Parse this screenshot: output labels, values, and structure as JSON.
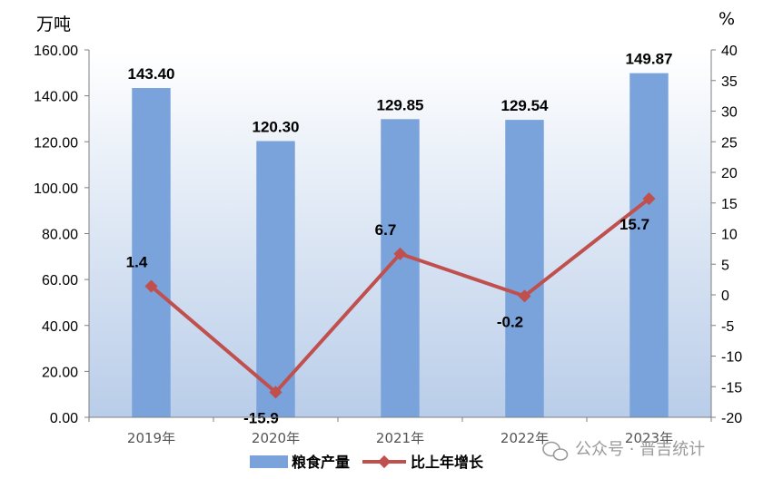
{
  "chart_data": {
    "type": "bar",
    "categories": [
      "2019年",
      "2020年",
      "2021年",
      "2022年",
      "2023年"
    ],
    "series": [
      {
        "name": "粮食产量",
        "type": "bar",
        "axis": "left",
        "color": "#7aa3dc",
        "values": [
          143.4,
          120.3,
          129.85,
          129.54,
          149.87
        ],
        "labels": [
          "143.40",
          "120.30",
          "129.85",
          "129.54",
          "149.87"
        ]
      },
      {
        "name": "比上年增长",
        "type": "line",
        "axis": "right",
        "color": "#c0504d",
        "values": [
          1.4,
          -15.9,
          6.7,
          -0.2,
          15.7
        ],
        "labels": [
          "1.4",
          "-15.9",
          "6.7",
          "-0.2",
          "15.7"
        ]
      }
    ],
    "ylabel": "万吨",
    "y2label": "%",
    "ylim": [
      0,
      160
    ],
    "y2lim": [
      -20,
      40
    ],
    "yticks": [
      "0.00",
      "20.00",
      "40.00",
      "60.00",
      "80.00",
      "100.00",
      "120.00",
      "140.00",
      "160.00"
    ],
    "y2ticks": [
      "-20",
      "-15",
      "-10",
      "-5",
      "0",
      "5",
      "10",
      "15",
      "20",
      "25",
      "30",
      "35",
      "40"
    ],
    "legend_position": "bottom",
    "plot_background": "gradient-light-blue"
  },
  "watermark": "公众号 · 晋吉统计"
}
